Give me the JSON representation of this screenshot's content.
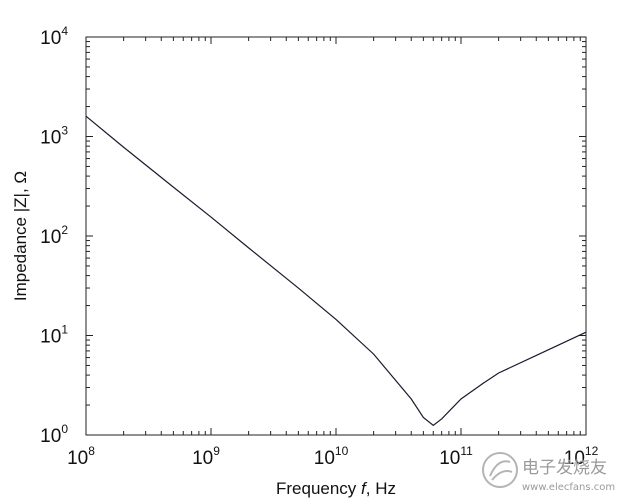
{
  "chart_data": {
    "type": "line",
    "xscale": "log",
    "yscale": "log",
    "xlim": [
      100000000,
      1000000000000
    ],
    "ylim": [
      1,
      10000
    ],
    "x_ticks": [
      {
        "base": "10",
        "exp": "8"
      },
      {
        "base": "10",
        "exp": "9"
      },
      {
        "base": "10",
        "exp": "10"
      },
      {
        "base": "10",
        "exp": "11"
      },
      {
        "base": "10",
        "exp": "12"
      }
    ],
    "y_ticks": [
      {
        "base": "10",
        "exp": "0"
      },
      {
        "base": "10",
        "exp": "1"
      },
      {
        "base": "10",
        "exp": "2"
      },
      {
        "base": "10",
        "exp": "3"
      },
      {
        "base": "10",
        "exp": "4"
      }
    ],
    "xlabel": "Frequency f, Hz",
    "xlabel_parts": {
      "prefix": "Frequency ",
      "var": "f",
      "suffix": ", Hz"
    },
    "ylabel": "Impedance |Z|, Ω",
    "grid": false,
    "series": [
      {
        "x": [
          100000000,
          200000000,
          500000000,
          1000000000,
          2000000000,
          5000000000,
          10000000000,
          20000000000,
          40000000000,
          50000000000,
          60000000000,
          70000000000,
          100000000000,
          150000000000,
          200000000000,
          400000000000,
          1000000000000
        ],
        "y": [
          1600,
          780,
          310,
          155,
          76,
          30,
          14.5,
          6.5,
          2.3,
          1.5,
          1.25,
          1.45,
          2.3,
          3.3,
          4.2,
          6.3,
          10.8
        ]
      }
    ],
    "color": "#1a1a2e"
  },
  "watermark": {
    "brand": "电子发烧友",
    "url": "www.elecfans.com"
  }
}
